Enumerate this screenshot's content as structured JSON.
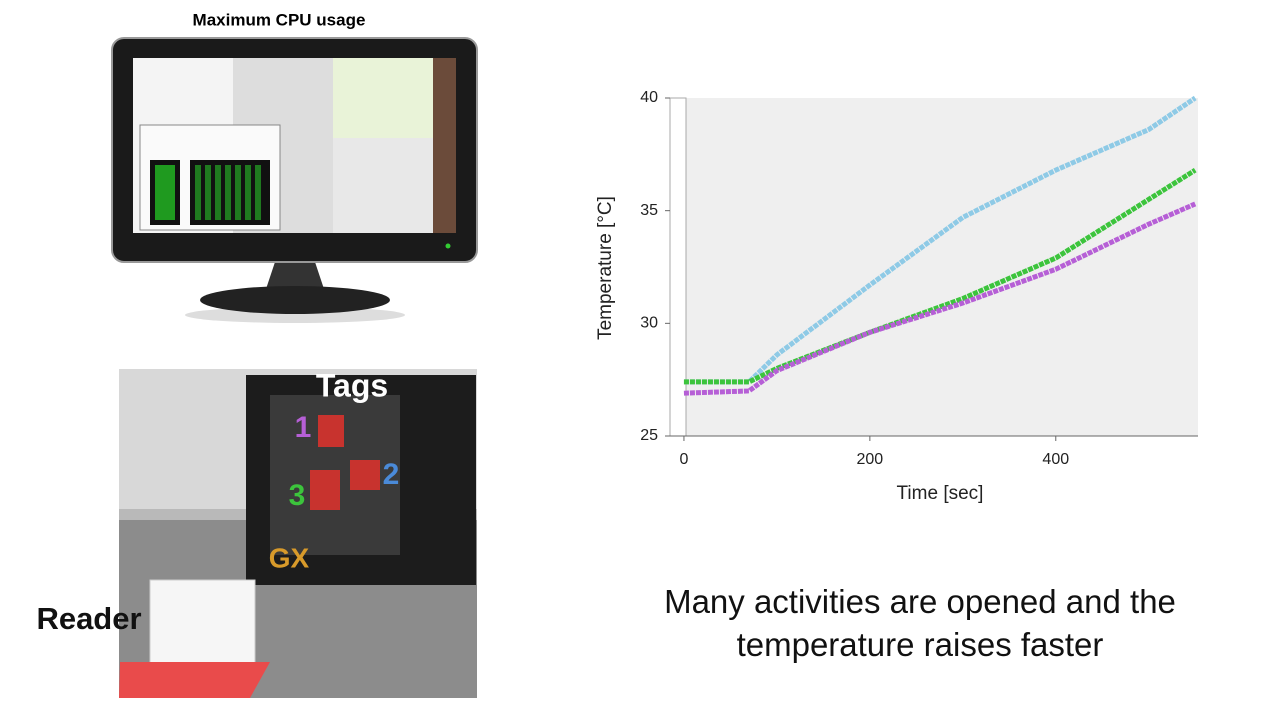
{
  "slide": {
    "monitor_title": "Maximum CPU usage",
    "photo": {
      "tags_label": "Tags",
      "tag_1": "1",
      "tag_2": "2",
      "tag_3": "3",
      "reader_label": "Reader",
      "case_logo": "GX"
    },
    "caption": "Many activities are opened and the temperature raises faster"
  },
  "chart_data": {
    "type": "line",
    "x_label": "Time [sec]",
    "y_label": "Temperature [°C]",
    "x": [
      0,
      70,
      80,
      100,
      200,
      300,
      400,
      500,
      550
    ],
    "series": [
      {
        "name": "Tag 2",
        "color": "#8ecae6",
        "values": [
          27.4,
          27.4,
          27.8,
          28.6,
          31.7,
          34.7,
          36.8,
          38.6,
          40.0
        ]
      },
      {
        "name": "Tag 3",
        "color": "#3cc43c",
        "values": [
          27.4,
          27.4,
          27.6,
          28.0,
          29.6,
          31.1,
          32.9,
          35.5,
          36.8
        ]
      },
      {
        "name": "Tag 1",
        "color": "#b65fd6",
        "values": [
          26.9,
          27.0,
          27.3,
          27.9,
          29.6,
          30.9,
          32.4,
          34.4,
          35.3
        ]
      }
    ],
    "xlim": [
      -15,
      553
    ],
    "ylim": [
      25,
      40
    ],
    "xticks": [
      0,
      200,
      400
    ],
    "yticks": [
      25,
      30,
      35,
      40
    ],
    "grid": false
  }
}
